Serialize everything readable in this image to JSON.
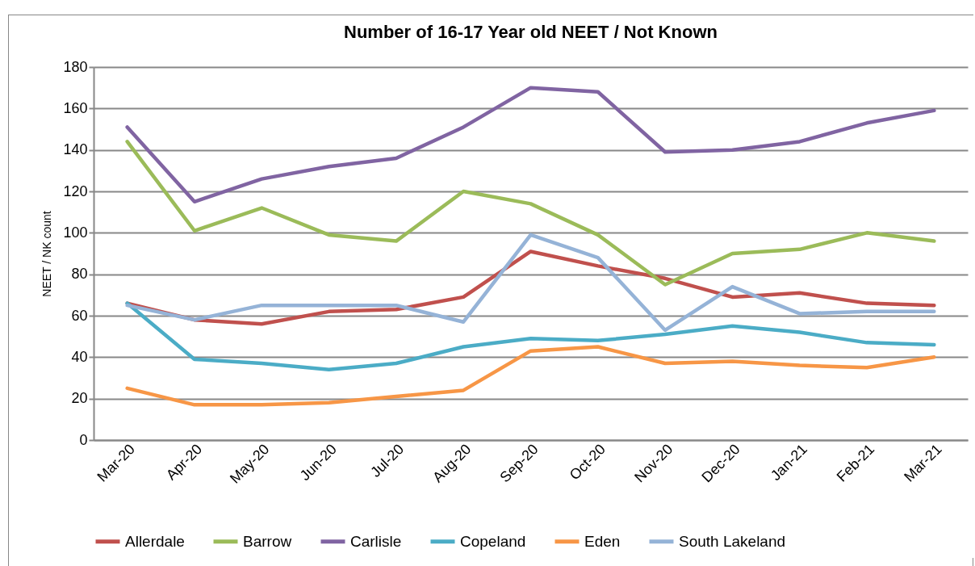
{
  "chart_data": {
    "type": "line",
    "title": "Number of 16-17 Year old NEET / Not Known",
    "ylabel": "NEET / NK count",
    "categories": [
      "Mar-20",
      "Apr-20",
      "May-20",
      "Jun-20",
      "Jul-20",
      "Aug-20",
      "Sep-20",
      "Oct-20",
      "Nov-20",
      "Dec-20",
      "Jan-21",
      "Feb-21",
      "Mar-21"
    ],
    "series": [
      {
        "name": "Allerdale",
        "color": "#c0504d",
        "values": [
          66,
          58,
          56,
          62,
          63,
          69,
          91,
          84,
          78,
          69,
          71,
          66,
          65
        ]
      },
      {
        "name": "Barrow",
        "color": "#9bbb59",
        "values": [
          144,
          101,
          112,
          99,
          96,
          120,
          114,
          99,
          75,
          90,
          92,
          100,
          96
        ]
      },
      {
        "name": "Carlisle",
        "color": "#8064a2",
        "values": [
          151,
          115,
          126,
          132,
          136,
          151,
          170,
          168,
          139,
          140,
          144,
          153,
          159
        ]
      },
      {
        "name": "Copeland",
        "color": "#4bacc6",
        "values": [
          66,
          39,
          37,
          34,
          37,
          45,
          49,
          48,
          51,
          55,
          52,
          47,
          46
        ]
      },
      {
        "name": "Eden",
        "color": "#f79646",
        "values": [
          25,
          17,
          17,
          18,
          21,
          24,
          43,
          45,
          37,
          38,
          36,
          35,
          40
        ]
      },
      {
        "name": "South Lakeland",
        "color": "#95b3d7",
        "values": [
          65,
          58,
          65,
          65,
          65,
          57,
          99,
          88,
          53,
          74,
          61,
          62,
          62
        ]
      }
    ],
    "ylim": [
      0,
      180
    ],
    "yticks": [
      0,
      20,
      40,
      60,
      80,
      100,
      120,
      140,
      160,
      180
    ],
    "grid": "y",
    "legend": "bottom",
    "marker": "none",
    "line_style": "solid"
  }
}
